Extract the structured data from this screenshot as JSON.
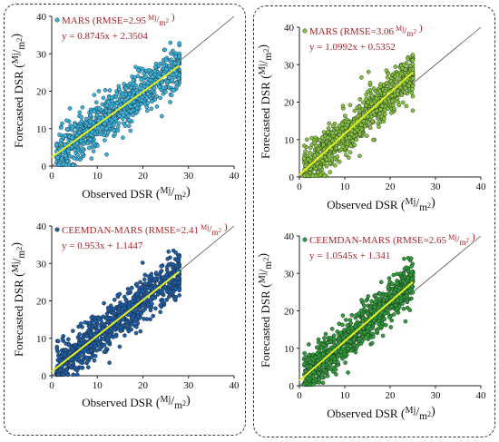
{
  "chart_data": [
    {
      "type": "scatter",
      "xlabel": "Observed DSR",
      "ylabel": "Forecasted DSR",
      "unit_num": "Mj",
      "unit_den": "m",
      "unit_exp": "2",
      "xlim": [
        0,
        40
      ],
      "ylim": [
        0,
        40
      ],
      "xticks": [
        "0",
        "10",
        "20",
        "30",
        "40"
      ],
      "yticks": [
        "0",
        "10",
        "20",
        "30",
        "40"
      ],
      "series": [
        {
          "name": "MARS (RMSE=2.95"
        }
      ],
      "rmse_close": ")",
      "equation": "y = 0.8745x + 2.3504",
      "slope": 0.8745,
      "intercept": 2.3504,
      "point_color": "#3ab4de",
      "fit_x": [
        0,
        28
      ]
    },
    {
      "type": "scatter",
      "xlabel": "Observed DSR",
      "ylabel": "Forecasted DSR",
      "unit_num": "Mj",
      "unit_den": "m",
      "unit_exp": "2",
      "xlim": [
        0,
        40
      ],
      "ylim": [
        0,
        40
      ],
      "xticks": [
        "0",
        "10",
        "20",
        "30",
        "40"
      ],
      "yticks": [
        "0",
        "10",
        "20",
        "30",
        "40"
      ],
      "series": [
        {
          "name": "MARS (RMSE=3.06"
        }
      ],
      "rmse_close": ")",
      "equation": "y = 1.0992x + 0.5352",
      "slope": 1.0992,
      "intercept": 0.5352,
      "point_color": "#84c23e",
      "fit_x": [
        0,
        25
      ]
    },
    {
      "type": "scatter",
      "xlabel": "Observed DSR",
      "ylabel": "Forecasted DSR",
      "unit_num": "Mj",
      "unit_den": "m",
      "unit_exp": "2",
      "xlim": [
        0,
        40
      ],
      "ylim": [
        0,
        40
      ],
      "xticks": [
        "0",
        "10",
        "20",
        "30",
        "40"
      ],
      "yticks": [
        "0",
        "10",
        "20",
        "30",
        "40"
      ],
      "series": [
        {
          "name": "CEEMDAN-MARS (RMSE=2.41"
        }
      ],
      "rmse_close": ")",
      "equation": "y = 0.953x + 1.1447",
      "slope": 0.953,
      "intercept": 1.1447,
      "point_color": "#1d5ea8",
      "fit_x": [
        0,
        28
      ]
    },
    {
      "type": "scatter",
      "xlabel": "Observed DSR",
      "ylabel": "Forecasted DSR",
      "unit_num": "Mj",
      "unit_den": "m",
      "unit_exp": "2",
      "xlim": [
        0,
        40
      ],
      "ylim": [
        0,
        40
      ],
      "xticks": [
        "0",
        "10",
        "20",
        "30",
        "40"
      ],
      "yticks": [
        "0",
        "10",
        "20",
        "30",
        "40"
      ],
      "series": [
        {
          "name": "CEEMDAN-MARS (RMSE=2.65"
        }
      ],
      "rmse_close": ")",
      "equation": "y = 1.0545x + 1.341",
      "slope": 1.0545,
      "intercept": 1.341,
      "point_color": "#2f9a3a",
      "fit_x": [
        0,
        25
      ]
    }
  ]
}
